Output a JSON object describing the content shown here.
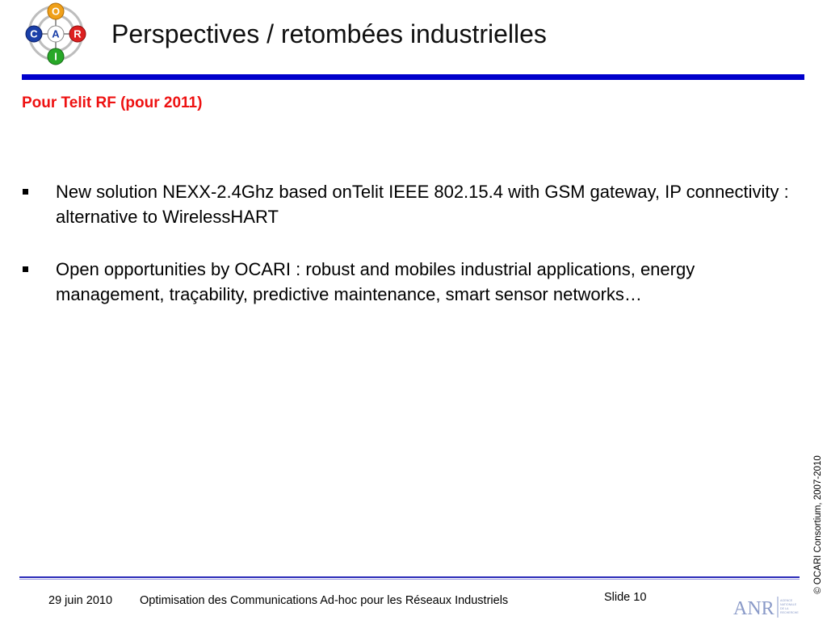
{
  "header": {
    "title": "Perspectives / retombées industrielles",
    "logo_letters": [
      "O",
      "C",
      "A",
      "R",
      "I"
    ]
  },
  "content": {
    "subtitle": "Pour Telit RF (pour 2011)",
    "bullets": [
      "New solution NEXX-2.4Ghz based onTelit IEEE 802.15.4 with GSM gateway, IP connectivity : alternative to WirelessHART",
      "Open opportunities by OCARI : robust and mobiles industrial applications, energy management, traçability, predictive maintenance, smart sensor networks…"
    ]
  },
  "side": {
    "copyright": "© OCARI  Consortium, 2007-2010"
  },
  "footer": {
    "date": "29 juin 2010",
    "title": "Optimisation des Communications Ad-hoc pour les Réseaux  Industriels",
    "slide": "Slide 10",
    "anr_logo_text": "ANR",
    "anr_logo_caption": [
      "AGENCE",
      "NATIONALE",
      "DE LA",
      "RECHERCHE"
    ]
  },
  "colors": {
    "title_bar": "#0000cc",
    "subtitle": "#ee1111",
    "logo_blue": "#1a3fa8",
    "logo_orange": "#f0a018",
    "logo_red": "#dd2020",
    "logo_green": "#28a828",
    "footer_line": "#2a2ab8"
  }
}
